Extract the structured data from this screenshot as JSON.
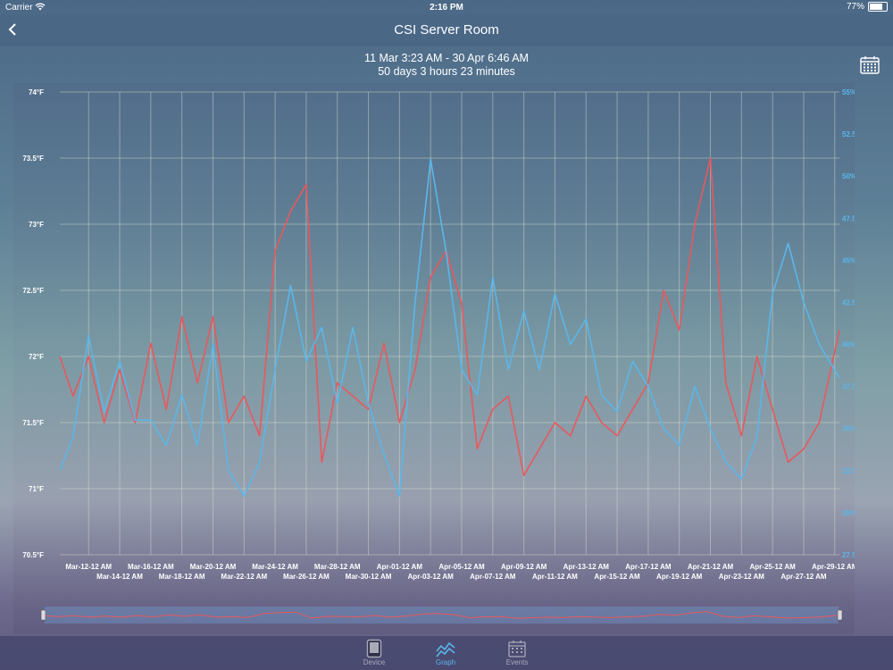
{
  "status_bar": {
    "carrier": "Carrier",
    "time": "2:16 PM",
    "battery": "77%",
    "battery_level": 0.77
  },
  "nav": {
    "title": "CSI Server Room"
  },
  "range": {
    "dates": "11 Mar 3:23 AM - 30 Apr 6:46 AM",
    "duration": "50 days 3 hours 23 minutes"
  },
  "tabs": [
    {
      "label": "Device",
      "icon": "device-icon"
    },
    {
      "label": "Graph",
      "icon": "graph-icon"
    },
    {
      "label": "Events",
      "icon": "events-icon"
    }
  ],
  "colors": {
    "temperature": "#e8585c",
    "humidity": "#5ab6ea"
  },
  "chart_data": {
    "type": "line",
    "y_left": {
      "ticks": [
        "74°F",
        "73.5°F",
        "73°F",
        "72.5°F",
        "72°F",
        "71.5°F",
        "71°F",
        "70.5°F"
      ],
      "range": [
        70.5,
        74
      ]
    },
    "y_right": {
      "ticks": [
        "55%RH",
        "52.5%RH",
        "50%RH",
        "47.5%RH",
        "45%RH",
        "42.5%RH",
        "40%RH",
        "37.5%RH",
        "35%RH",
        "32.5%RH",
        "30%RH",
        "27.5%RH"
      ],
      "range": [
        27.5,
        55
      ]
    },
    "x_ticks_top": [
      "Mar-12-12 AM",
      "Mar-16-12 AM",
      "Mar-20-12 AM",
      "Mar-24-12 AM",
      "Mar-28-12 AM",
      "Apr-01-12 AM",
      "Apr-05-12 AM",
      "Apr-09-12 AM",
      "Apr-13-12 AM",
      "Apr-17-12 AM",
      "Apr-21-12 AM",
      "Apr-25-12 AM",
      "Apr-29-12 AM"
    ],
    "x_ticks_bottom": [
      "Mar-14-12 AM",
      "Mar-18-12 AM",
      "Mar-22-12 AM",
      "Mar-26-12 AM",
      "Mar-30-12 AM",
      "Apr-03-12 AM",
      "Apr-07-12 AM",
      "Apr-11-12 AM",
      "Apr-15-12 AM",
      "Apr-19-12 AM",
      "Apr-23-12 AM",
      "Apr-27-12 AM"
    ],
    "grid": true,
    "series": [
      {
        "axis": "left",
        "day": [
          10.15,
          11,
          12,
          13,
          14,
          15,
          16,
          17,
          18,
          19,
          20,
          21,
          22,
          23,
          24,
          25,
          26,
          27,
          28,
          29,
          30,
          31,
          32,
          33,
          34,
          35,
          36,
          37,
          38,
          39,
          40,
          41,
          42,
          43,
          44,
          45,
          46,
          47,
          48,
          49,
          50,
          51,
          52,
          53,
          54,
          55,
          56,
          57,
          58,
          59,
          60.3
        ],
        "values": [
          72.0,
          71.7,
          72.0,
          71.5,
          71.9,
          71.5,
          72.1,
          71.6,
          72.3,
          71.8,
          72.3,
          71.5,
          71.7,
          71.4,
          72.8,
          73.1,
          73.3,
          71.2,
          71.8,
          71.7,
          71.6,
          72.1,
          71.5,
          71.9,
          72.6,
          72.8,
          72.4,
          71.3,
          71.6,
          71.7,
          71.1,
          71.3,
          71.5,
          71.4,
          71.7,
          71.5,
          71.4,
          71.6,
          71.8,
          72.5,
          72.2,
          73.0,
          73.5,
          71.8,
          71.4,
          72.0,
          71.6,
          71.2,
          71.3,
          71.5,
          72.2
        ]
      },
      {
        "axis": "right",
        "day": [
          10.15,
          11,
          12,
          13,
          14,
          15,
          16,
          17,
          18,
          19,
          20,
          21,
          22,
          23,
          24,
          25,
          26,
          27,
          28,
          29,
          30,
          31,
          32,
          33,
          34,
          35,
          36,
          37,
          38,
          39,
          40,
          41,
          42,
          43,
          44,
          45,
          46,
          47,
          48,
          49,
          50,
          51,
          52,
          53,
          54,
          55,
          56,
          57,
          58,
          59,
          60.3
        ],
        "values": [
          32.5,
          34.5,
          40.5,
          36.0,
          39.0,
          35.5,
          35.5,
          34.0,
          37.0,
          34.0,
          40.0,
          32.5,
          31.0,
          33.0,
          38.5,
          43.5,
          39.0,
          41.0,
          36.5,
          41.0,
          36.5,
          33.5,
          31.0,
          42.5,
          51.0,
          45.5,
          38.5,
          37.0,
          44.0,
          38.5,
          42.0,
          38.5,
          43.0,
          40.0,
          41.5,
          37.0,
          36.0,
          39.0,
          37.5,
          35.0,
          34.0,
          37.5,
          35.0,
          33.0,
          32.0,
          34.5,
          43.0,
          46.0,
          42.5,
          40.0,
          38.0
        ]
      }
    ]
  }
}
